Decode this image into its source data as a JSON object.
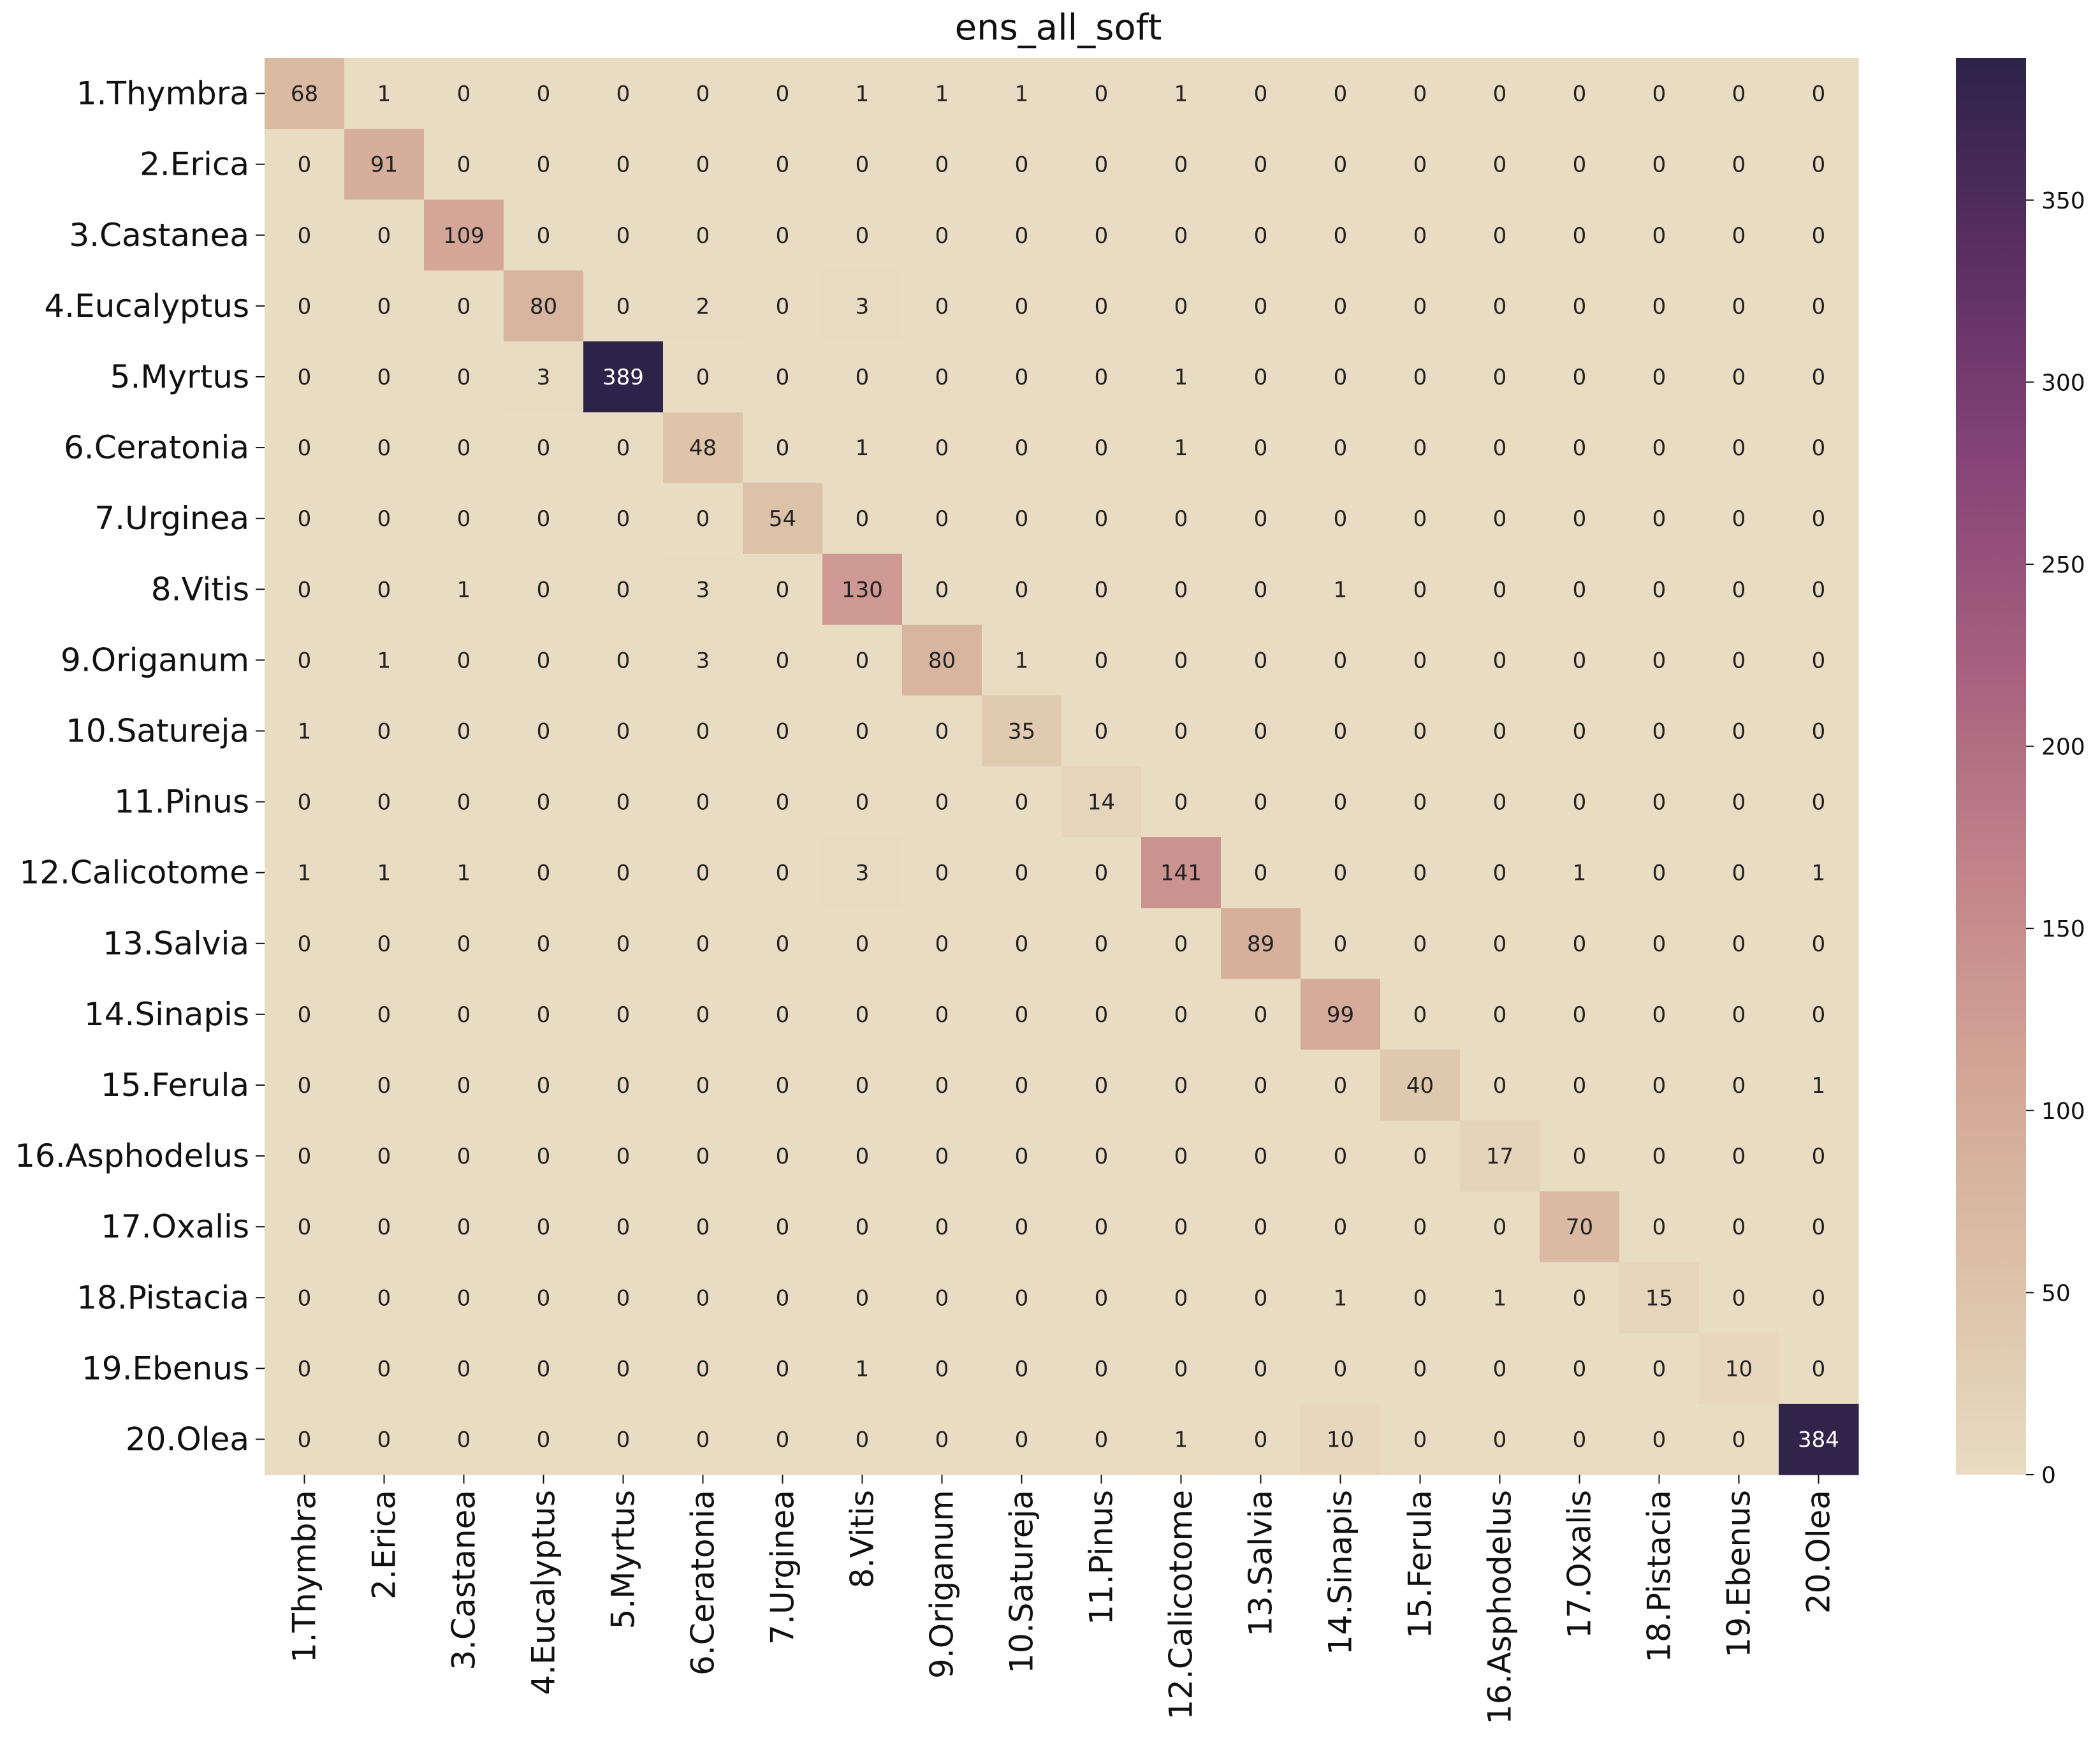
{
  "chart_data": {
    "type": "heatmap",
    "title": "ens_all_soft",
    "xlabel": "",
    "ylabel": "",
    "row_labels": [
      "1.Thymbra",
      "2.Erica",
      "3.Castanea",
      "4.Eucalyptus",
      "5.Myrtus",
      "6.Ceratonia",
      "7.Urginea",
      "8.Vitis",
      "9.Origanum",
      "10.Satureja",
      "11.Pinus",
      "12.Calicotome",
      "13.Salvia",
      "14.Sinapis",
      "15.Ferula",
      "16.Asphodelus",
      "17.Oxalis",
      "18.Pistacia",
      "19.Ebenus",
      "20.Olea"
    ],
    "col_labels": [
      "1.Thymbra",
      "2.Erica",
      "3.Castanea",
      "4.Eucalyptus",
      "5.Myrtus",
      "6.Ceratonia",
      "7.Urginea",
      "8.Vitis",
      "9.Origanum",
      "10.Satureja",
      "11.Pinus",
      "12.Calicotome",
      "13.Salvia",
      "14.Sinapis",
      "15.Ferula",
      "16.Asphodelus",
      "17.Oxalis",
      "18.Pistacia",
      "19.Ebenus",
      "20.Olea"
    ],
    "matrix": [
      [
        68,
        1,
        0,
        0,
        0,
        0,
        0,
        1,
        1,
        1,
        0,
        1,
        0,
        0,
        0,
        0,
        0,
        0,
        0,
        0
      ],
      [
        0,
        91,
        0,
        0,
        0,
        0,
        0,
        0,
        0,
        0,
        0,
        0,
        0,
        0,
        0,
        0,
        0,
        0,
        0,
        0
      ],
      [
        0,
        0,
        109,
        0,
        0,
        0,
        0,
        0,
        0,
        0,
        0,
        0,
        0,
        0,
        0,
        0,
        0,
        0,
        0,
        0
      ],
      [
        0,
        0,
        0,
        80,
        0,
        2,
        0,
        3,
        0,
        0,
        0,
        0,
        0,
        0,
        0,
        0,
        0,
        0,
        0,
        0
      ],
      [
        0,
        0,
        0,
        3,
        389,
        0,
        0,
        0,
        0,
        0,
        0,
        1,
        0,
        0,
        0,
        0,
        0,
        0,
        0,
        0
      ],
      [
        0,
        0,
        0,
        0,
        0,
        48,
        0,
        1,
        0,
        0,
        0,
        1,
        0,
        0,
        0,
        0,
        0,
        0,
        0,
        0
      ],
      [
        0,
        0,
        0,
        0,
        0,
        0,
        54,
        0,
        0,
        0,
        0,
        0,
        0,
        0,
        0,
        0,
        0,
        0,
        0,
        0
      ],
      [
        0,
        0,
        1,
        0,
        0,
        3,
        0,
        130,
        0,
        0,
        0,
        0,
        0,
        1,
        0,
        0,
        0,
        0,
        0,
        0
      ],
      [
        0,
        1,
        0,
        0,
        0,
        3,
        0,
        0,
        80,
        1,
        0,
        0,
        0,
        0,
        0,
        0,
        0,
        0,
        0,
        0
      ],
      [
        1,
        0,
        0,
        0,
        0,
        0,
        0,
        0,
        0,
        35,
        0,
        0,
        0,
        0,
        0,
        0,
        0,
        0,
        0,
        0
      ],
      [
        0,
        0,
        0,
        0,
        0,
        0,
        0,
        0,
        0,
        0,
        14,
        0,
        0,
        0,
        0,
        0,
        0,
        0,
        0,
        0
      ],
      [
        1,
        1,
        1,
        0,
        0,
        0,
        0,
        3,
        0,
        0,
        0,
        141,
        0,
        0,
        0,
        0,
        1,
        0,
        0,
        1
      ],
      [
        0,
        0,
        0,
        0,
        0,
        0,
        0,
        0,
        0,
        0,
        0,
        0,
        89,
        0,
        0,
        0,
        0,
        0,
        0,
        0
      ],
      [
        0,
        0,
        0,
        0,
        0,
        0,
        0,
        0,
        0,
        0,
        0,
        0,
        0,
        99,
        0,
        0,
        0,
        0,
        0,
        0
      ],
      [
        0,
        0,
        0,
        0,
        0,
        0,
        0,
        0,
        0,
        0,
        0,
        0,
        0,
        0,
        40,
        0,
        0,
        0,
        0,
        1
      ],
      [
        0,
        0,
        0,
        0,
        0,
        0,
        0,
        0,
        0,
        0,
        0,
        0,
        0,
        0,
        0,
        17,
        0,
        0,
        0,
        0
      ],
      [
        0,
        0,
        0,
        0,
        0,
        0,
        0,
        0,
        0,
        0,
        0,
        0,
        0,
        0,
        0,
        0,
        70,
        0,
        0,
        0
      ],
      [
        0,
        0,
        0,
        0,
        0,
        0,
        0,
        0,
        0,
        0,
        0,
        0,
        0,
        1,
        0,
        1,
        0,
        15,
        0,
        0
      ],
      [
        0,
        0,
        0,
        0,
        0,
        0,
        0,
        1,
        0,
        0,
        0,
        0,
        0,
        0,
        0,
        0,
        0,
        0,
        10,
        0
      ],
      [
        0,
        0,
        0,
        0,
        0,
        0,
        0,
        0,
        0,
        0,
        0,
        1,
        0,
        10,
        0,
        0,
        0,
        0,
        0,
        384
      ]
    ],
    "colorbar": {
      "range": [
        0,
        389
      ],
      "ticks": [
        0,
        50,
        100,
        150,
        200,
        250,
        300,
        350
      ],
      "tick_labels": [
        "0",
        "50",
        "100",
        "150",
        "200",
        "250",
        "300",
        "350"
      ],
      "colors": [
        "#e8dcc3",
        "#dcc1a6",
        "#d3a596",
        "#c2838a",
        "#a7607e",
        "#864478",
        "#5c2f62",
        "#2c2348"
      ]
    },
    "grid": false,
    "legend": "right"
  }
}
